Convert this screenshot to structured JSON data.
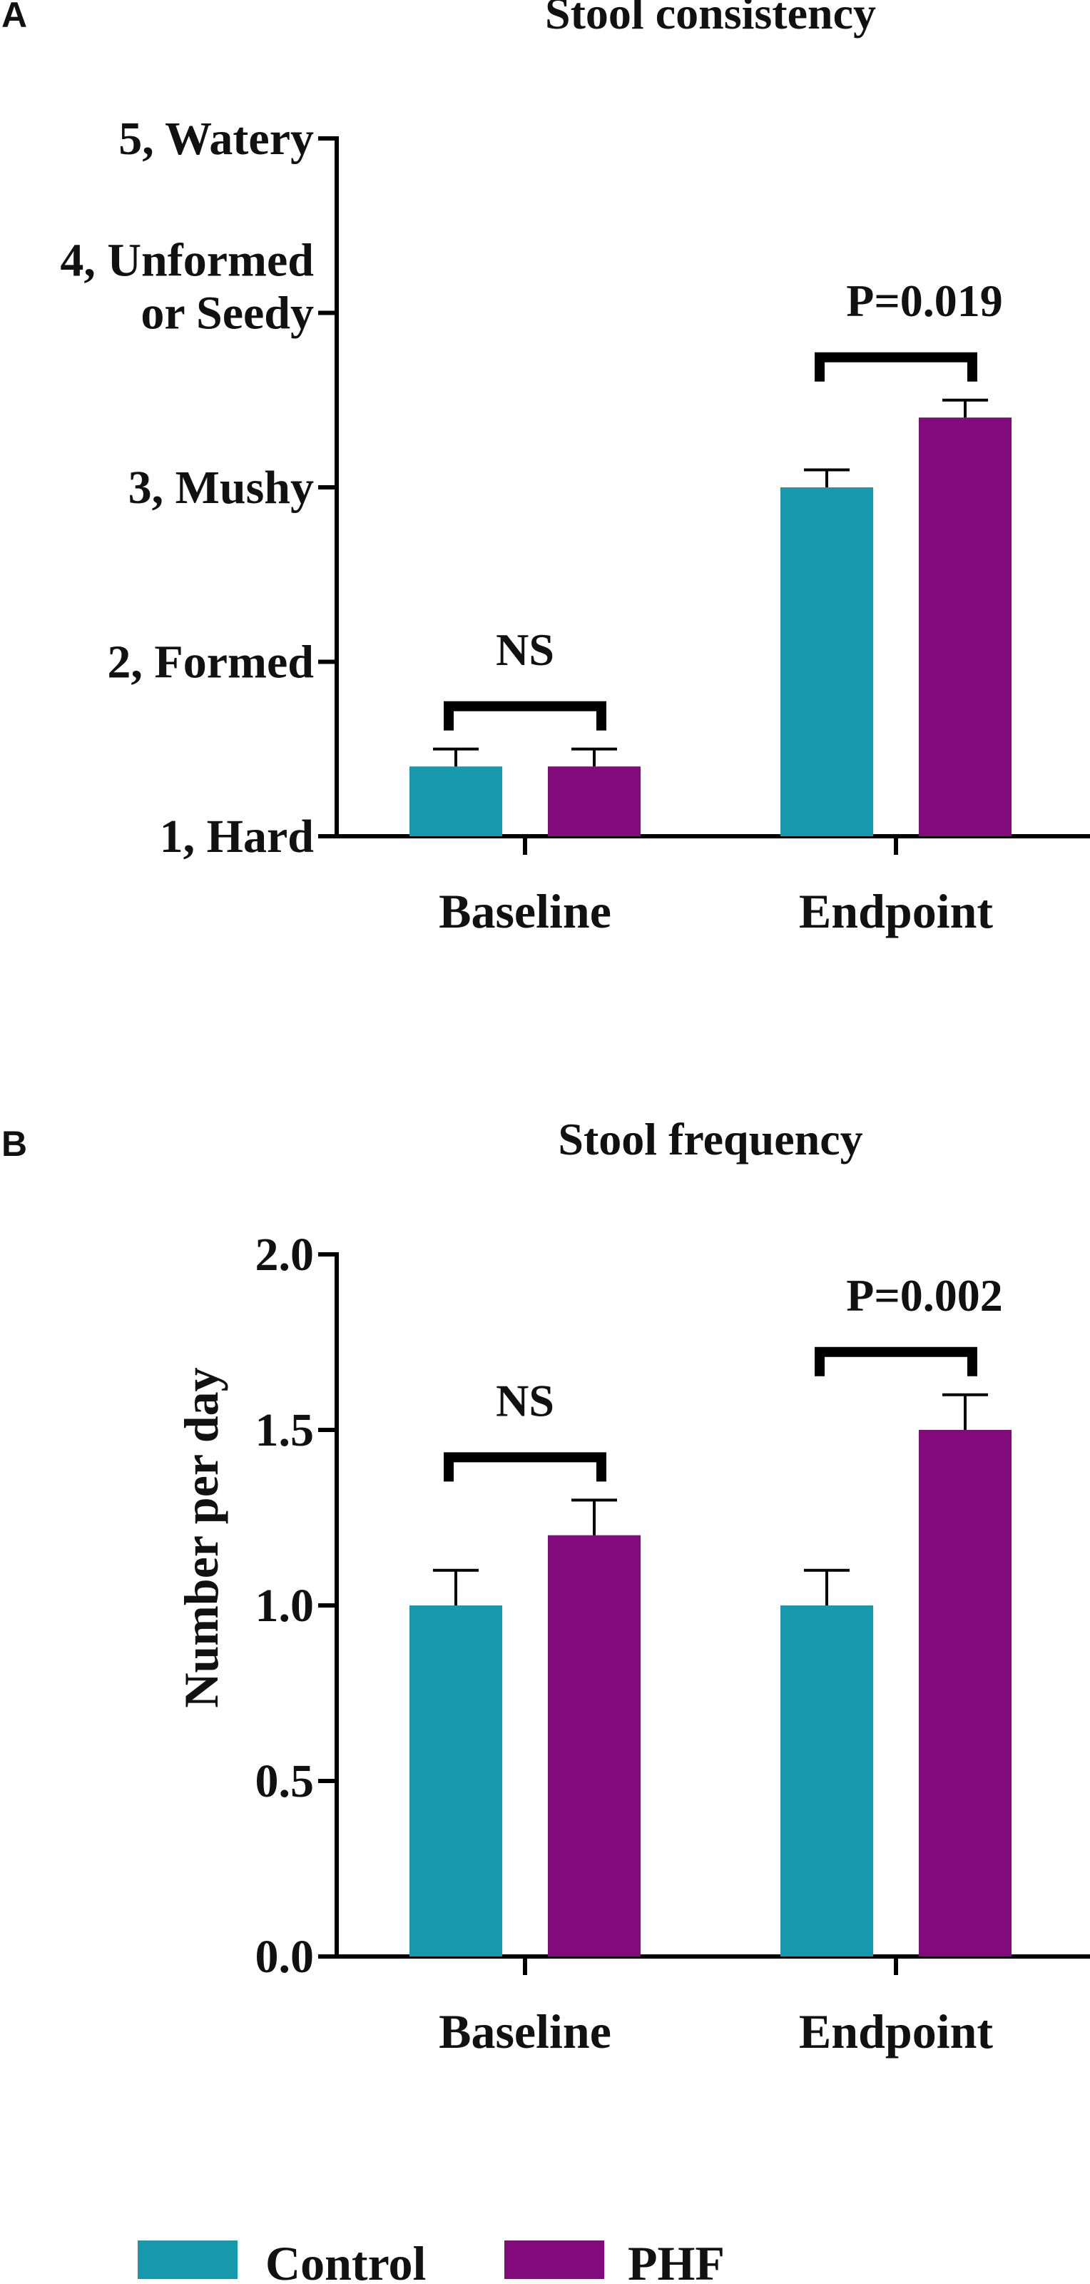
{
  "chart_data": [
    {
      "panel": "A",
      "type": "bar",
      "title": "Stool consistency",
      "categories": [
        "Baseline",
        "Endpoint"
      ],
      "ylim": [
        1,
        5
      ],
      "yticks": [
        1,
        2,
        3,
        4,
        5
      ],
      "ytick_labels": [
        [
          "1, Hard"
        ],
        [
          "2, Formed"
        ],
        [
          "3, Mushy"
        ],
        [
          "4, Unformed",
          "or Seedy"
        ],
        [
          "5, Watery"
        ]
      ],
      "ylabel": "",
      "series": [
        {
          "name": "Control",
          "color": "#1699AD",
          "values": [
            1.4,
            3.0
          ],
          "errors": [
            0.1,
            0.1
          ]
        },
        {
          "name": "PHF",
          "color": "#820A7B",
          "values": [
            1.4,
            3.4
          ],
          "errors": [
            0.1,
            0.1
          ]
        }
      ],
      "annotations": [
        {
          "category": "Baseline",
          "text": "NS"
        },
        {
          "category": "Endpoint",
          "text": "P=0.019"
        }
      ]
    },
    {
      "panel": "B",
      "type": "bar",
      "title": "Stool frequency",
      "categories": [
        "Baseline",
        "Endpoint"
      ],
      "ylim": [
        0,
        2
      ],
      "yticks": [
        0,
        0.5,
        1,
        1.5,
        2
      ],
      "ytick_labels": [
        [
          "0.0"
        ],
        [
          "0.5"
        ],
        [
          "1.0"
        ],
        [
          "1.5"
        ],
        [
          "2.0"
        ]
      ],
      "ylabel": "Number per day",
      "series": [
        {
          "name": "Control",
          "color": "#1699AD",
          "values": [
            1.0,
            1.0
          ],
          "errors": [
            0.1,
            0.1
          ]
        },
        {
          "name": "PHF",
          "color": "#820A7B",
          "values": [
            1.2,
            1.5
          ],
          "errors": [
            0.1,
            0.1
          ]
        }
      ],
      "annotations": [
        {
          "category": "Baseline",
          "text": "NS"
        },
        {
          "category": "Endpoint",
          "text": "P=0.002"
        }
      ]
    }
  ],
  "legend": [
    {
      "name": "Control",
      "color": "#1699AD"
    },
    {
      "name": "PHF",
      "color": "#820A7B"
    }
  ]
}
